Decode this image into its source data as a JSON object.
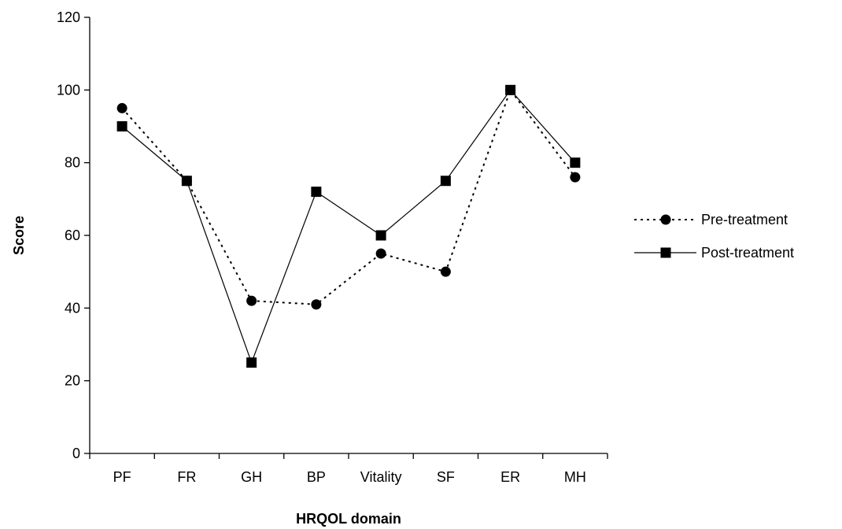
{
  "chart_data": {
    "type": "line",
    "title": "",
    "xlabel": "HRQOL domain",
    "ylabel": "Score",
    "categories": [
      "PF",
      "FR",
      "GH",
      "BP",
      "Vitality",
      "SF",
      "ER",
      "MH"
    ],
    "ylim": [
      0,
      120
    ],
    "yticks": [
      0,
      20,
      40,
      60,
      80,
      100,
      120
    ],
    "grid": false,
    "legend_position": "right",
    "series": [
      {
        "name": "Pre-treatment",
        "values": [
          95,
          75,
          42,
          41,
          55,
          50,
          100,
          76
        ],
        "line_style": "dotted",
        "marker": "circle",
        "color": "#000000"
      },
      {
        "name": "Post-treatment",
        "values": [
          90,
          75,
          25,
          72,
          60,
          75,
          100,
          80
        ],
        "line_style": "solid",
        "marker": "square",
        "color": "#000000"
      }
    ]
  }
}
